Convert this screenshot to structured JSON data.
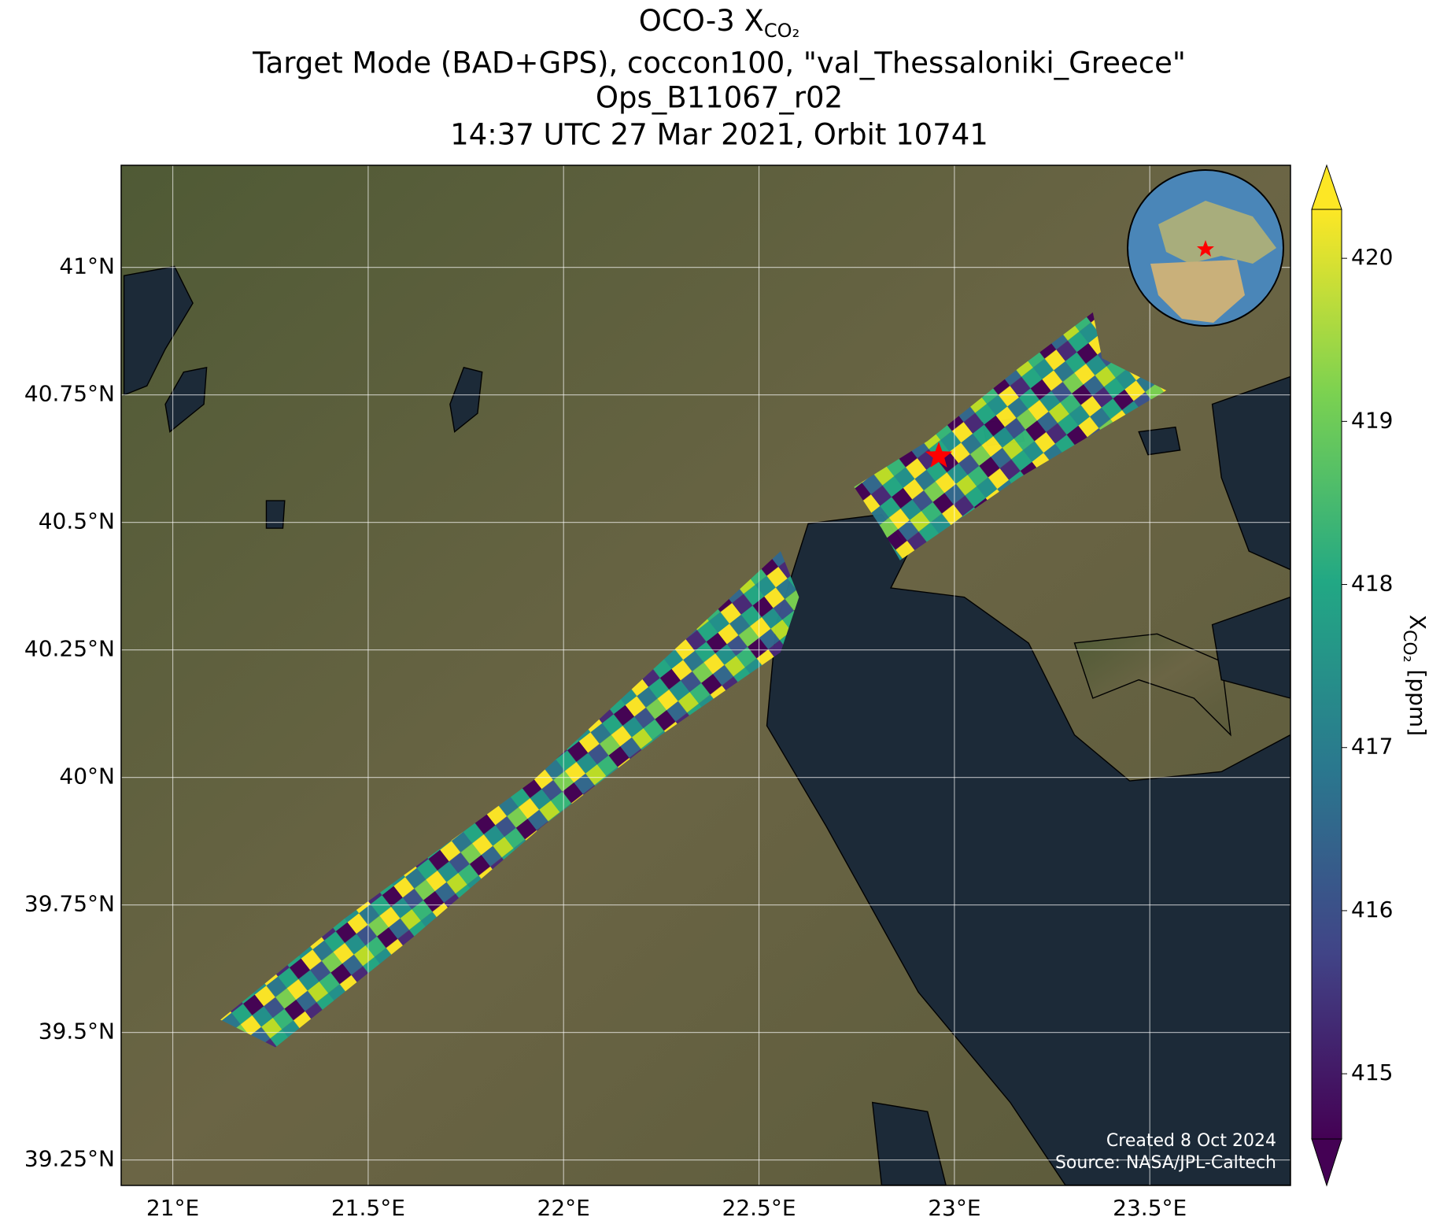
{
  "chart_data": {
    "type": "map",
    "title": {
      "main": "OCO-3 X",
      "main_sub": "CO₂",
      "line2": "Target Mode (BAD+GPS), coccon100, \"val_Thessaloniki_Greece\"",
      "line3": "Ops_B11067_r02",
      "line4": "14:37 UTC 27 Mar 2021, Orbit 10741"
    },
    "xlim": [
      20.868,
      23.86
    ],
    "ylim": [
      39.2,
      41.2
    ],
    "xticks": [
      {
        "value": 21,
        "label": "21°E"
      },
      {
        "value": 21.5,
        "label": "21.5°E"
      },
      {
        "value": 22,
        "label": "22°E"
      },
      {
        "value": 22.5,
        "label": "22.5°E"
      },
      {
        "value": 23,
        "label": "23°E"
      },
      {
        "value": 23.5,
        "label": "23.5°E"
      }
    ],
    "yticks": [
      {
        "value": 39.25,
        "label": "39.25°N"
      },
      {
        "value": 39.5,
        "label": "39.5°N"
      },
      {
        "value": 39.75,
        "label": "39.75°N"
      },
      {
        "value": 40,
        "label": "40°N"
      },
      {
        "value": 40.25,
        "label": "40.25°N"
      },
      {
        "value": 40.5,
        "label": "40.5°N"
      },
      {
        "value": 40.75,
        "label": "40.75°N"
      },
      {
        "value": 41,
        "label": "41°N"
      }
    ],
    "grid": true,
    "target": {
      "lon": 22.96,
      "lat": 40.63
    },
    "colorbar": {
      "lim": [
        414.6,
        420.3
      ],
      "ticks": [
        415,
        416,
        417,
        418,
        419,
        420
      ],
      "label": "X",
      "label_sub": "CO₂",
      "label_unit": " [ppm]"
    },
    "credits": [
      "Created 8 Oct 2024",
      "Source: NASA/JPL-Caltech"
    ]
  }
}
